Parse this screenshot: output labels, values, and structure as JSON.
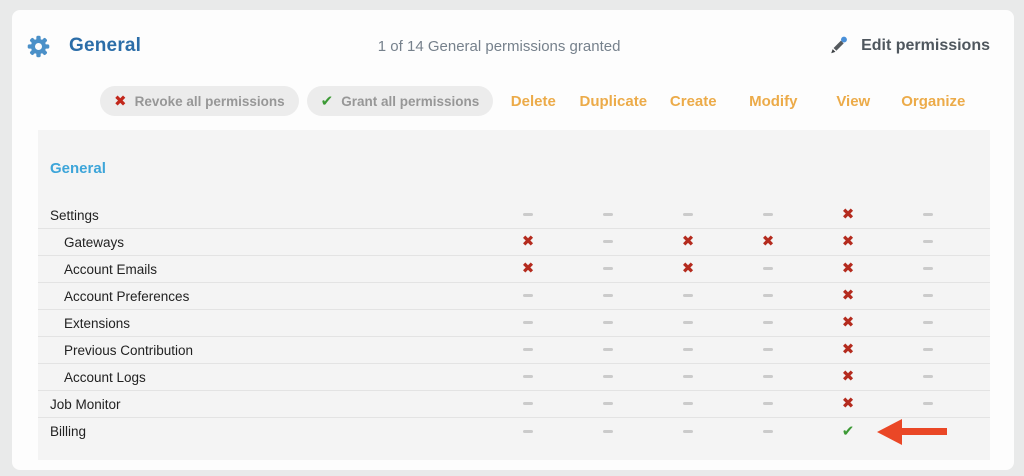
{
  "header": {
    "title": "General",
    "summary": "1 of 14 General permissions granted",
    "edit_label": "Edit permissions"
  },
  "toolbar": {
    "revoke_label": "Revoke all permissions",
    "grant_label": "Grant all permissions"
  },
  "icons": {
    "denied": "✖",
    "granted": "✔",
    "revoke": "✖",
    "grant": "✔"
  },
  "colors": {
    "accent_blue": "#2b6da8",
    "section_blue": "#3da5d9",
    "column_orange": "#ecab49",
    "denied_red": "#b42b1e",
    "granted_green": "#3c9a35",
    "arrow_red": "#ea4726"
  },
  "table": {
    "section": "General",
    "columns": [
      "Delete",
      "Duplicate",
      "Create",
      "Modify",
      "View",
      "Organize"
    ],
    "rows": [
      {
        "label": "Settings",
        "indent": false,
        "cells": [
          "none",
          "none",
          "none",
          "none",
          "denied",
          "none"
        ]
      },
      {
        "label": "Gateways",
        "indent": true,
        "cells": [
          "denied",
          "none",
          "denied",
          "denied",
          "denied",
          "none"
        ]
      },
      {
        "label": "Account Emails",
        "indent": true,
        "cells": [
          "denied",
          "none",
          "denied",
          "none",
          "denied",
          "none"
        ]
      },
      {
        "label": "Account Preferences",
        "indent": true,
        "cells": [
          "none",
          "none",
          "none",
          "none",
          "denied",
          "none"
        ]
      },
      {
        "label": "Extensions",
        "indent": true,
        "cells": [
          "none",
          "none",
          "none",
          "none",
          "denied",
          "none"
        ]
      },
      {
        "label": "Previous Contribution",
        "indent": true,
        "cells": [
          "none",
          "none",
          "none",
          "none",
          "denied",
          "none"
        ]
      },
      {
        "label": "Account Logs",
        "indent": true,
        "cells": [
          "none",
          "none",
          "none",
          "none",
          "denied",
          "none"
        ]
      },
      {
        "label": "Job Monitor",
        "indent": false,
        "cells": [
          "none",
          "none",
          "none",
          "none",
          "denied",
          "none"
        ]
      },
      {
        "label": "Billing",
        "indent": false,
        "cells": [
          "none",
          "none",
          "none",
          "none",
          "granted",
          "none"
        ],
        "annotation": "arrow"
      }
    ]
  }
}
